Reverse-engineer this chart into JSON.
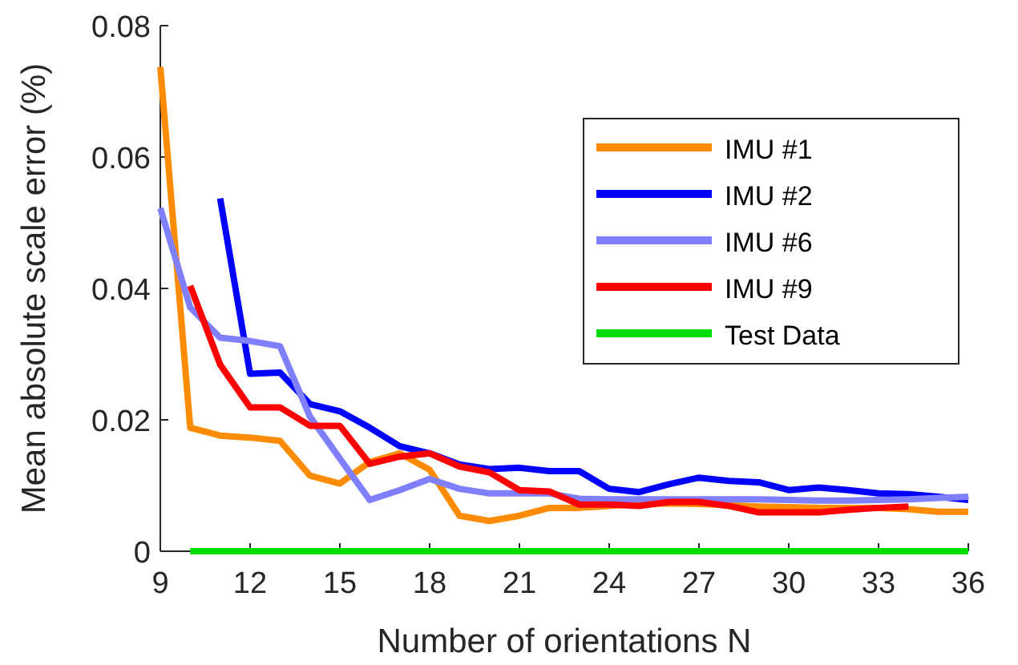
{
  "chart_data": {
    "type": "line",
    "xlabel": "Number of orientations N",
    "ylabel": "Mean absolute scale error (%)",
    "xlim": [
      9,
      36
    ],
    "xticks": [
      9,
      12,
      15,
      18,
      21,
      24,
      27,
      30,
      33,
      36
    ],
    "ylim": [
      0,
      0.08
    ],
    "yticks": [
      0,
      0.02,
      0.04,
      0.06,
      0.08
    ],
    "legend": "right",
    "grid": false,
    "marker": "none",
    "line_style": "solid",
    "series": [
      {
        "name": "IMU #1",
        "color": "#ff8c00",
        "x": [
          9,
          10,
          11,
          12,
          13,
          14,
          15,
          16,
          17,
          18,
          19,
          20,
          21,
          22,
          23,
          24,
          25,
          26,
          27,
          28,
          29,
          30,
          31,
          32,
          33,
          34,
          35,
          36
        ],
        "values": [
          0.0737,
          0.0188,
          0.0176,
          0.0173,
          0.0168,
          0.0115,
          0.0103,
          0.0136,
          0.0149,
          0.0124,
          0.0054,
          0.0046,
          0.0054,
          0.0066,
          0.0066,
          0.0069,
          0.0072,
          0.0073,
          0.0072,
          0.007,
          0.0068,
          0.0067,
          0.0066,
          0.0066,
          0.0066,
          0.0064,
          0.006,
          0.006
        ]
      },
      {
        "name": "IMU #2",
        "color": "#0000ff",
        "x": [
          11,
          12,
          13,
          14,
          15,
          16,
          17,
          18,
          19,
          20,
          21,
          22,
          23,
          24,
          25,
          26,
          27,
          28,
          29,
          30,
          31,
          32,
          33,
          34,
          35,
          36
        ],
        "values": [
          0.0537,
          0.027,
          0.0272,
          0.0224,
          0.0213,
          0.0188,
          0.016,
          0.0149,
          0.0132,
          0.0125,
          0.0127,
          0.0122,
          0.0122,
          0.0095,
          0.009,
          0.0102,
          0.0112,
          0.0107,
          0.0105,
          0.0093,
          0.0097,
          0.0093,
          0.0088,
          0.0087,
          0.0083,
          0.0078
        ]
      },
      {
        "name": "IMU #6",
        "color": "#8080ff",
        "x": [
          9,
          10,
          11,
          12,
          13,
          14,
          15,
          16,
          17,
          18,
          19,
          20,
          21,
          22,
          23,
          24,
          25,
          26,
          27,
          28,
          29,
          30,
          31,
          32,
          33,
          34,
          35,
          36
        ],
        "values": [
          0.0522,
          0.0371,
          0.0325,
          0.032,
          0.0312,
          0.0205,
          0.0141,
          0.0078,
          0.0093,
          0.011,
          0.0095,
          0.0088,
          0.0088,
          0.0088,
          0.008,
          0.0079,
          0.0079,
          0.0079,
          0.0079,
          0.0079,
          0.0079,
          0.0078,
          0.0077,
          0.0077,
          0.0078,
          0.0079,
          0.0081,
          0.0083
        ]
      },
      {
        "name": "IMU #9",
        "color": "#ff0000",
        "x": [
          10,
          11,
          12,
          13,
          14,
          15,
          16,
          17,
          18,
          19,
          20,
          21,
          22,
          23,
          24,
          25,
          26,
          27,
          28,
          29,
          30,
          31,
          32,
          33,
          34
        ],
        "values": [
          0.0404,
          0.0284,
          0.0219,
          0.0219,
          0.0191,
          0.0191,
          0.0133,
          0.0144,
          0.0149,
          0.0129,
          0.012,
          0.0093,
          0.0091,
          0.0071,
          0.0071,
          0.0069,
          0.0075,
          0.0075,
          0.0069,
          0.0059,
          0.0059,
          0.0059,
          0.0063,
          0.0066,
          0.0068
        ]
      },
      {
        "name": "Test Data",
        "color": "#00dd00",
        "x": [
          10,
          36
        ],
        "values": [
          0,
          0
        ]
      }
    ]
  }
}
